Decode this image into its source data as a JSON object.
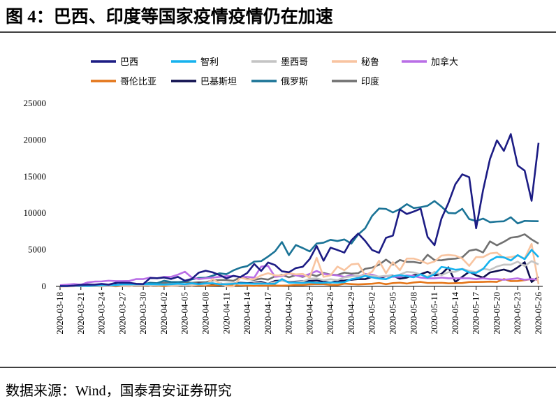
{
  "title": "图 4：巴西、印度等国家疫情疫情仍在加速",
  "source": "数据来源：Wind，国泰君安证券研究",
  "chart_data": {
    "type": "line",
    "categories": [
      "2020-03-18",
      null,
      null,
      "2020-03-21",
      null,
      null,
      "2020-03-24",
      null,
      null,
      "2020-03-27",
      null,
      null,
      "2020-03-30",
      null,
      null,
      "2020-04-02",
      null,
      null,
      "2020-04-05",
      null,
      null,
      "2020-04-08",
      null,
      null,
      "2020-04-11",
      null,
      null,
      "2020-04-14",
      null,
      null,
      "2020-04-17",
      null,
      null,
      "2020-04-20",
      null,
      null,
      "2020-04-23",
      null,
      null,
      "2020-04-26",
      null,
      null,
      "2020-04-29",
      null,
      null,
      "2020-05-02",
      null,
      null,
      "2020-05-05",
      null,
      null,
      "2020-05-08",
      null,
      null,
      "2020-05-11",
      null,
      null,
      "2020-05-14",
      null,
      null,
      "2020-05-17",
      null,
      null,
      "2020-05-20",
      null,
      null,
      "2020-05-23",
      null,
      null,
      "2020-05-26"
    ],
    "ylim": [
      0,
      25000
    ],
    "yticks": [
      0,
      5000,
      10000,
      15000,
      20000,
      25000
    ],
    "legend": "top",
    "series": [
      {
        "name": "巴西",
        "color": "#1c1c84",
        "values": [
          57,
          47,
          98,
          196,
          228,
          235,
          346,
          232,
          482,
          502,
          487,
          352,
          323,
          1138,
          1119,
          1208,
          1012,
          1304,
          770,
          1031,
          1873,
          2136,
          1922,
          1546,
          1089,
          1442,
          1261,
          1832,
          3058,
          2105,
          3257,
          2917,
          2055,
          1927,
          2498,
          2678,
          3735,
          5514,
          3503,
          5281,
          4970,
          4613,
          6276,
          7218,
          6209,
          4970,
          4588,
          6633,
          6935,
          10503,
          9888,
          10222,
          10611,
          6760,
          5632,
          9258,
          11385,
          13944,
          15305,
          14919,
          7938,
          13140,
          17408,
          19951,
          18508,
          20803,
          16508,
          15813,
          11687,
          19600
        ]
      },
      {
        "name": "智利",
        "color": "#16b2ee",
        "values": [
          37,
          57,
          96,
          105,
          60,
          114,
          176,
          220,
          164,
          304,
          293,
          310,
          299,
          306,
          293,
          250,
          308,
          373,
          301,
          423,
          306,
          426,
          430,
          286,
          286,
          357,
          426,
          408,
          355,
          382,
          367,
          357,
          1000,
          500,
          493,
          454,
          552,
          475,
          482,
          537,
          502,
          578,
          985,
          1138,
          1427,
          1228,
          1065,
          980,
          1373,
          1533,
          1391,
          1247,
          1656,
          1197,
          1658,
          2660,
          2502,
          2278,
          2355,
          1901,
          1836,
          2372,
          3520,
          4038,
          3964,
          3536,
          4276,
          3709,
          5000,
          4000
        ]
      },
      {
        "name": "墨西哥",
        "color": "#c4c4c4",
        "values": [
          11,
          46,
          39,
          52,
          65,
          48,
          55,
          38,
          110,
          108,
          134,
          124,
          145,
          160,
          163,
          178,
          225,
          256,
          96,
          253,
          296,
          260,
          441,
          304,
          396,
          442,
          293,
          311,
          422,
          442,
          350,
          578,
          764,
          561,
          585,
          663,
          1043,
          1089,
          835,
          970,
          852,
          1223,
          1349,
          1425,
          1515,
          1433,
          1349,
          1434,
          1383,
          1609,
          1982,
          1906,
          1623,
          1305,
          1997,
          1526,
          1939,
          1992,
          2409,
          2112,
          1938,
          2414,
          2248,
          2713,
          2973,
          2960,
          3377,
          2764,
          3455,
          3000
        ]
      },
      {
        "name": "秘鲁",
        "color": "#f8c4a0",
        "values": [
          0,
          11,
          22,
          84,
          45,
          60,
          0,
          64,
          164,
          48,
          0,
          219,
          300,
          93,
          180,
          223,
          89,
          102,
          245,
          102,
          300,
          228,
          1000,
          428,
          0,
          0,
          1200,
          946,
          1000,
          1500,
          1800,
          1500,
          1500,
          1800,
          1642,
          1700,
          1200,
          3900,
          1300,
          1500,
          2700,
          2200,
          3000,
          3100,
          1500,
          2000,
          3500,
          1800,
          3300,
          2200,
          3800,
          3800,
          3500,
          3100,
          3400,
          4200,
          4300,
          4200,
          3800,
          2800,
          4000,
          4000,
          4500,
          4600,
          3900,
          4000,
          4200,
          3800,
          5800,
          300
        ]
      },
      {
        "name": "加拿大",
        "color": "#b96ee6",
        "values": [
          163,
          230,
          319,
          234,
          546,
          658,
          681,
          776,
          727,
          722,
          746,
          1000,
          1000,
          1200,
          1100,
          1300,
          1300,
          1600,
          2000,
          1200,
          1000,
          1100,
          1200,
          1300,
          1400,
          1400,
          1300,
          1300,
          1200,
          2700,
          2800,
          1300,
          1400,
          1800,
          1500,
          1400,
          1700,
          2100,
          1700,
          1600,
          1500,
          1300,
          1500,
          1300,
          1700,
          1600,
          1300,
          1400,
          1300,
          1300,
          1500,
          1400,
          1200,
          1100,
          1100,
          1200,
          1100,
          1100,
          1100,
          1100,
          1000,
          1100,
          1000,
          1000,
          900,
          1000,
          1100,
          900,
          1000,
          900
        ]
      },
      {
        "name": "哥伦比亚",
        "color": "#e4761a",
        "values": [
          3,
          28,
          50,
          92,
          65,
          39,
          4,
          75,
          21,
          48,
          76,
          106,
          96,
          108,
          92,
          41,
          104,
          120,
          118,
          109,
          137,
          101,
          133,
          175,
          254,
          132,
          128,
          85,
          68,
          98,
          87,
          116,
          97,
          123,
          185,
          180,
          278,
          313,
          297,
          207,
          181,
          376,
          313,
          269,
          319,
          360,
          466,
          304,
          445,
          502,
          384,
          529,
          610,
          465,
          468,
          490,
          412,
          434,
          461,
          587,
          599,
          613,
          646,
          616,
          1000,
          717,
          733,
          852,
          1000,
          879
        ]
      },
      {
        "name": "巴基斯坦",
        "color": "#0e0e4e",
        "values": [
          50,
          100,
          150,
          100,
          250,
          200,
          150,
          200,
          250,
          150,
          200,
          300,
          200,
          100,
          200,
          150,
          200,
          250,
          300,
          250,
          400,
          300,
          250,
          400,
          300,
          400,
          500,
          450,
          500,
          600,
          350,
          750,
          800,
          600,
          650,
          700,
          750,
          800,
          650,
          500,
          750,
          800,
          900,
          1000,
          990,
          1300,
          1100,
          1400,
          1450,
          1050,
          1200,
          1520,
          1670,
          1990,
          1500,
          1700,
          2600,
          600,
          1300,
          2000,
          1500,
          1200,
          1900,
          2100,
          2300,
          2000,
          2600,
          3300,
          600,
          1300
        ]
      },
      {
        "name": "俄罗斯",
        "color": "#1a7396",
        "values": [
          33,
          52,
          54,
          53,
          62,
          71,
          57,
          163,
          182,
          196,
          228,
          270,
          302,
          500,
          440,
          771,
          601,
          582,
          658,
          954,
          1154,
          1175,
          1459,
          1786,
          1667,
          2186,
          2558,
          2774,
          3388,
          3448,
          4070,
          4785,
          6060,
          4268,
          5642,
          5236,
          4774,
          5849,
          5966,
          6361,
          6198,
          6411,
          5841,
          7099,
          7933,
          9623,
          10633,
          10581,
          10102,
          10559,
          11231,
          10699,
          10817,
          11012,
          11656,
          10899,
          10028,
          9974,
          10598,
          9200,
          8926,
          9263,
          8764,
          8849,
          8894,
          9434,
          8599,
          8946,
          8915,
          8900
        ]
      },
      {
        "name": "印度",
        "color": "#707070",
        "values": [
          28,
          14,
          27,
          50,
          74,
          86,
          73,
          100,
          75,
          153,
          137,
          106,
          92,
          146,
          424,
          486,
          560,
          579,
          609,
          484,
          573,
          565,
          813,
          871,
          854,
          758,
          1243,
          1031,
          886,
          1061,
          922,
          1371,
          1580,
          1239,
          1537,
          1292,
          1667,
          1408,
          1835,
          1607,
          1561,
          1873,
          1738,
          1801,
          2396,
          2564,
          2952,
          3656,
          2971,
          3602,
          3344,
          3339,
          3175,
          4311,
          3592,
          3562,
          3726,
          3787,
          3967,
          4864,
          5050,
          4630,
          6147,
          5611,
          6088,
          6654,
          6767,
          7113,
          6414,
          5843
        ]
      }
    ]
  }
}
